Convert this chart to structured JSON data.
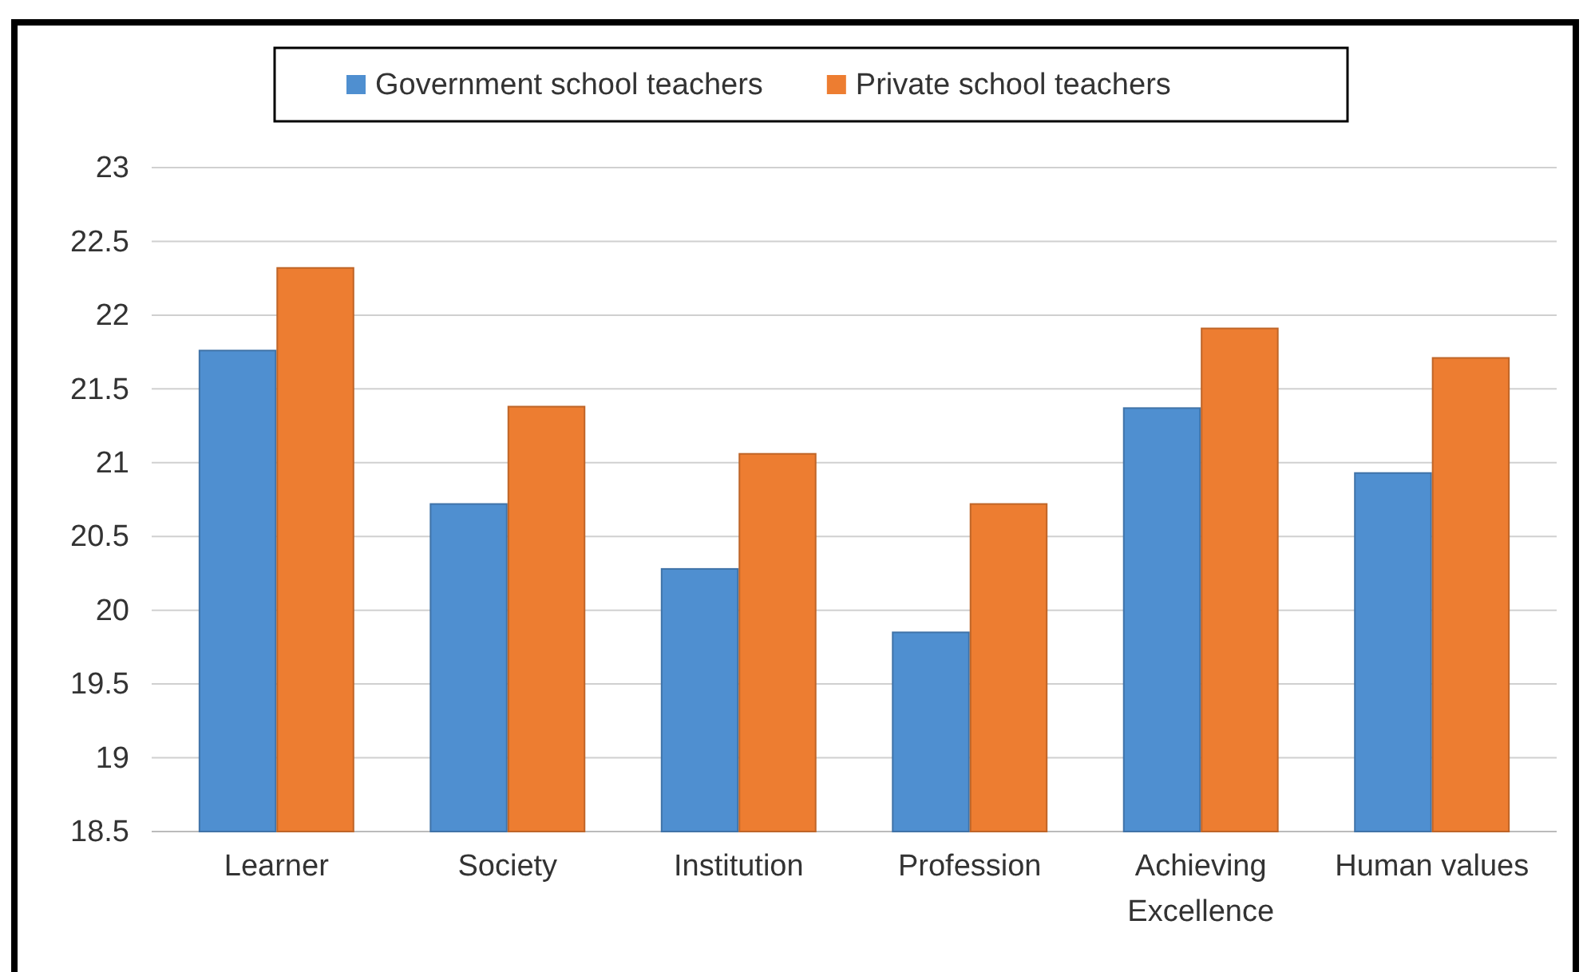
{
  "chart_data": {
    "type": "bar",
    "categories": [
      "Learner",
      "Society",
      "Institution",
      "Profession",
      "Achieving Excellence",
      "Human values"
    ],
    "series": [
      {
        "name": "Government school teachers",
        "color": "#4f8fd0",
        "values": [
          21.76,
          20.72,
          20.28,
          19.85,
          21.37,
          20.93
        ]
      },
      {
        "name": "Private school teachers",
        "color": "#ed7d31",
        "values": [
          22.32,
          21.38,
          21.06,
          20.72,
          21.91,
          21.71
        ]
      }
    ],
    "ylim": [
      18.5,
      23
    ],
    "yticks": [
      18.5,
      19,
      19.5,
      20,
      20.5,
      21,
      21.5,
      22,
      22.5,
      23
    ],
    "grid": "y",
    "legend": "top"
  }
}
